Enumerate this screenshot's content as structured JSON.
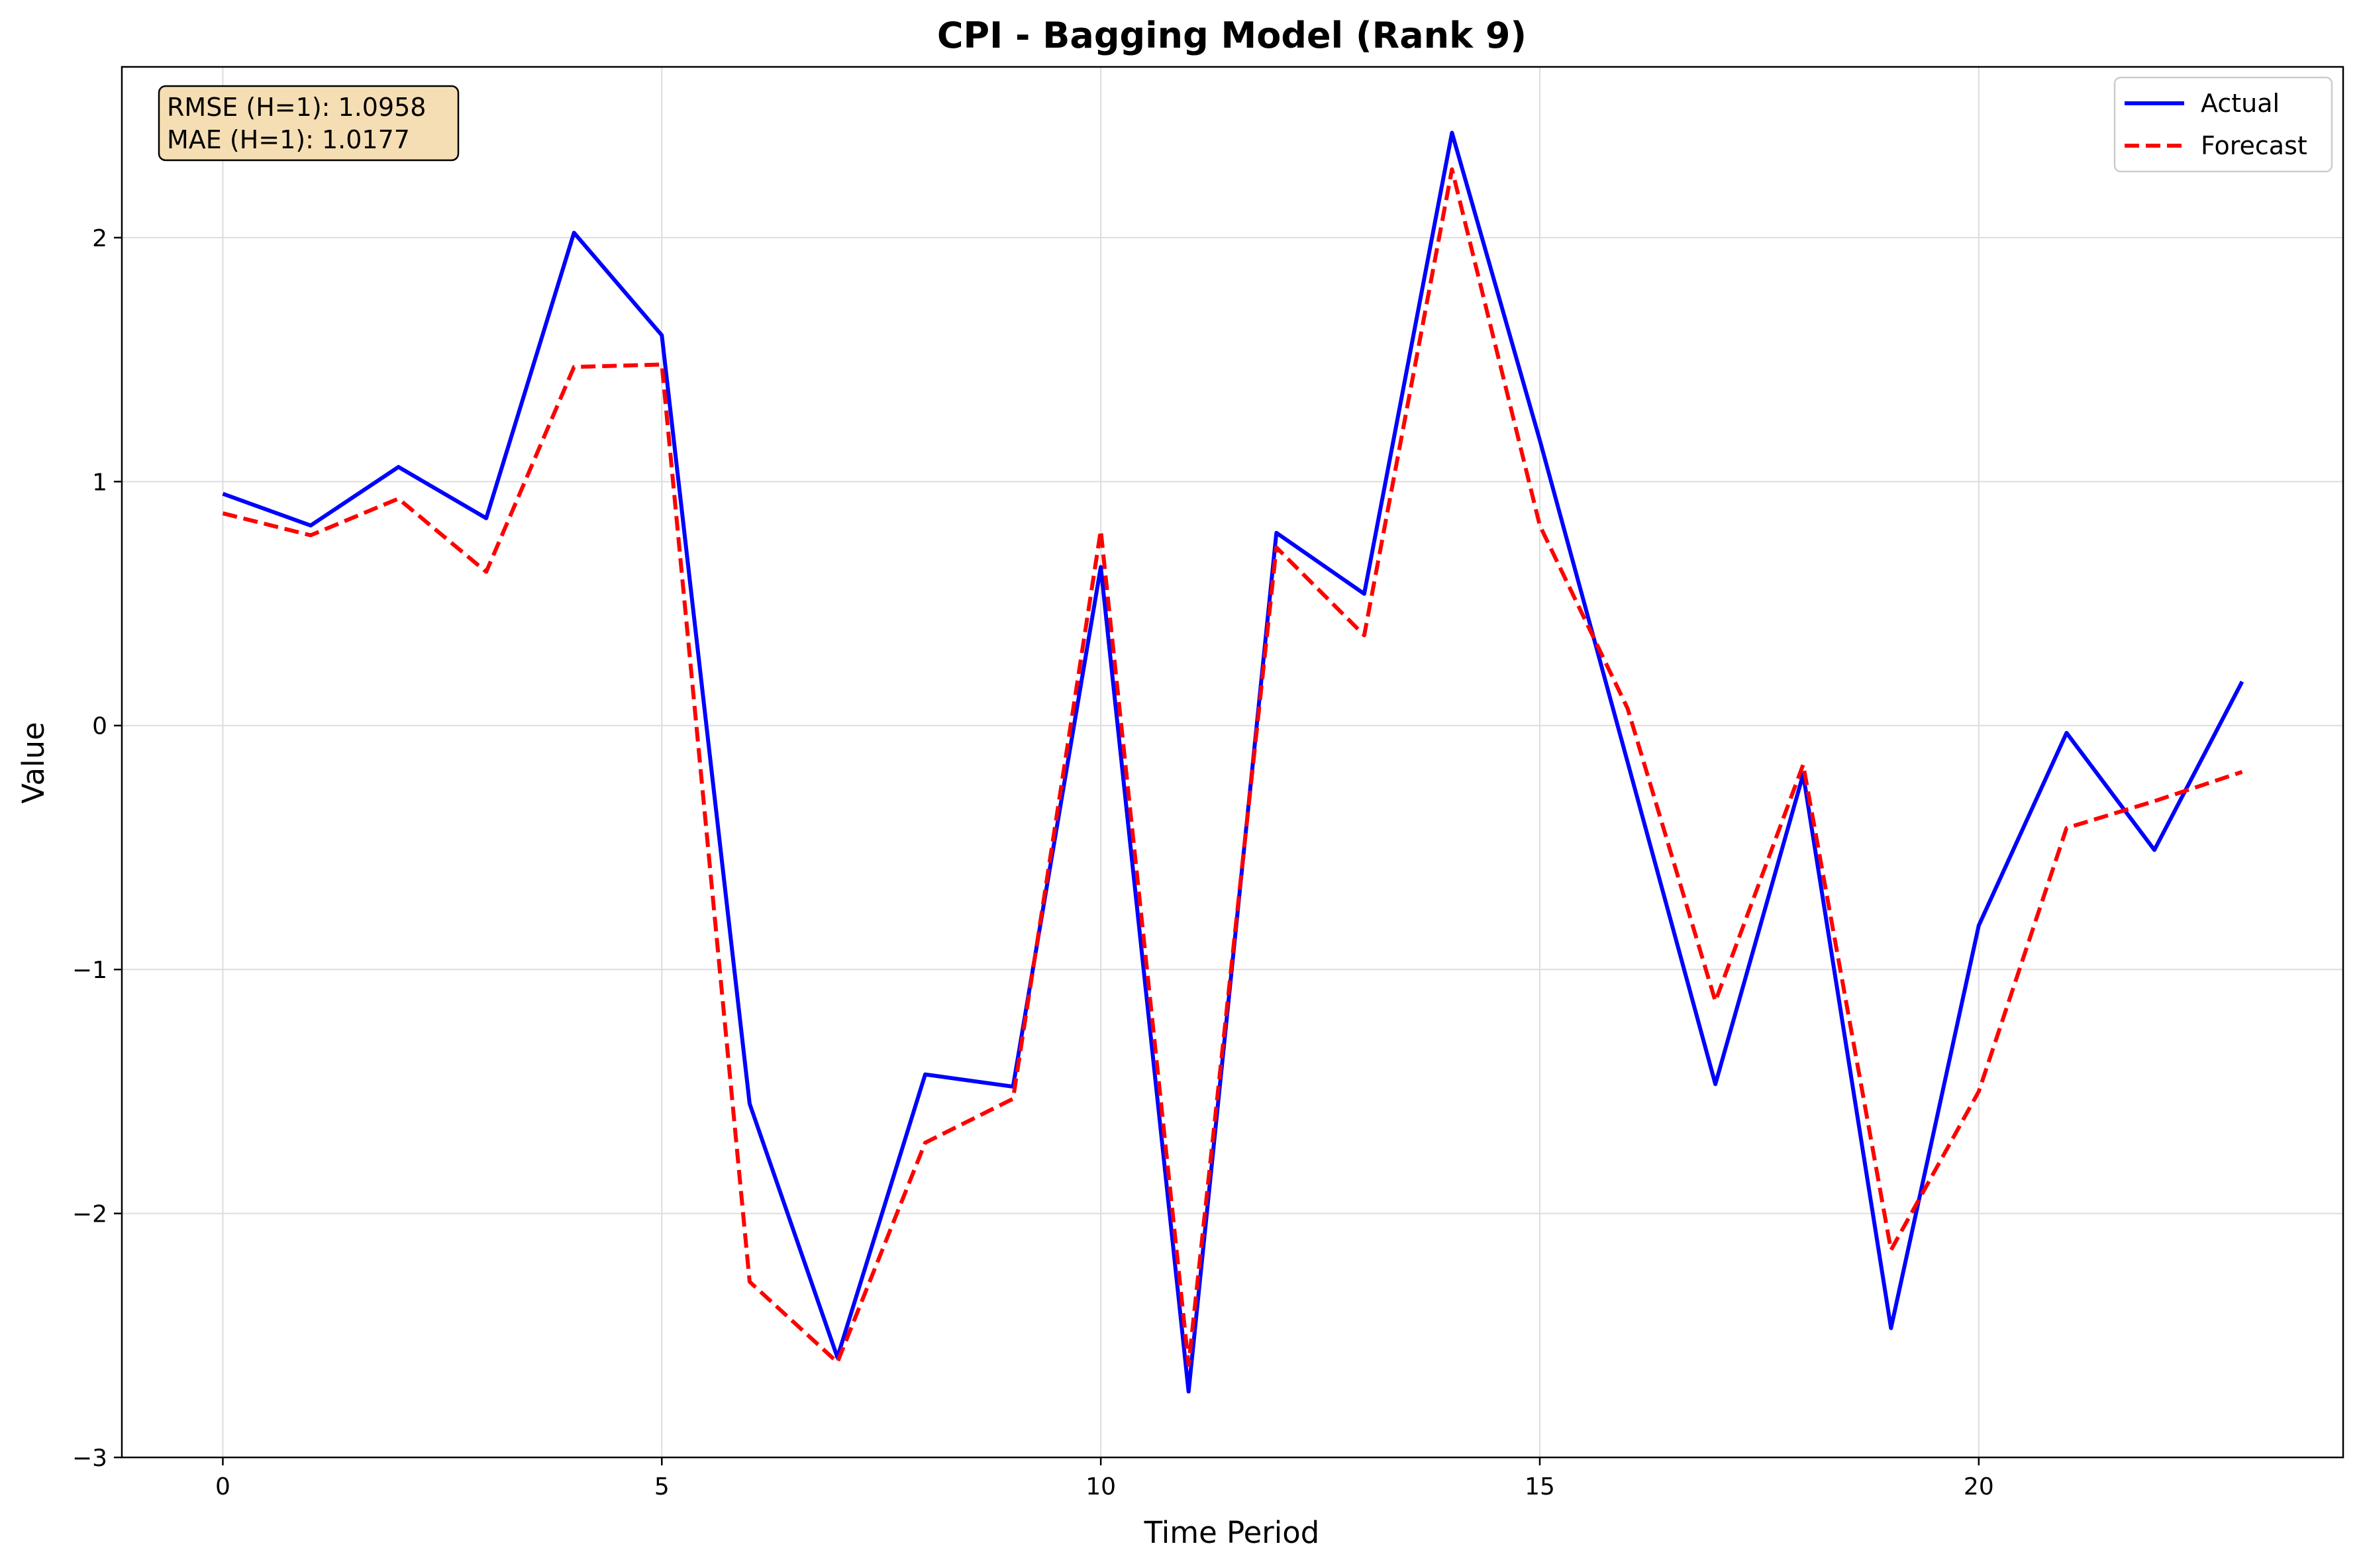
{
  "chart_data": {
    "type": "line",
    "title": "CPI - Bagging Model (Rank 9)",
    "xlabel": "Time Period",
    "ylabel": "Value",
    "xlim": [
      -1.15,
      24.15
    ],
    "ylim": [
      -3,
      2.7
    ],
    "xticks": [
      0,
      5,
      10,
      15,
      20
    ],
    "xtick_labels": [
      "0",
      "5",
      "10",
      "15",
      "20"
    ],
    "yticks": [
      -3,
      -2,
      -1,
      0,
      1,
      2
    ],
    "ytick_labels": [
      "−3",
      "−2",
      "−1",
      "0",
      "1",
      "2"
    ],
    "grid": true,
    "legend_position": "top-right",
    "x": [
      0,
      1,
      2,
      3,
      4,
      5,
      6,
      7,
      8,
      9,
      10,
      11,
      12,
      13,
      14,
      15,
      16,
      17,
      18,
      19,
      20,
      21,
      22,
      23
    ],
    "series": [
      {
        "name": "Actual",
        "color": "#0000ff",
        "style": "solid",
        "values": [
          0.95,
          0.82,
          1.06,
          0.85,
          2.02,
          1.6,
          -1.55,
          -2.59,
          -1.43,
          -1.48,
          0.65,
          -2.73,
          0.79,
          0.54,
          2.43,
          1.17,
          -0.15,
          -1.47,
          -0.2,
          -2.47,
          -0.82,
          -0.03,
          -0.51,
          0.18
        ]
      },
      {
        "name": "Forecast",
        "color": "#ff0000",
        "style": "dashed",
        "values": [
          0.87,
          0.78,
          0.93,
          0.63,
          1.47,
          1.48,
          -2.28,
          -2.61,
          -1.71,
          -1.53,
          0.8,
          -2.62,
          0.73,
          0.37,
          2.28,
          0.82,
          0.07,
          -1.13,
          -0.16,
          -2.15,
          -1.5,
          -0.42,
          -0.31,
          -0.19
        ]
      }
    ],
    "annotation": {
      "lines": [
        "RMSE (H=1): 1.0958",
        "MAE (H=1): 1.0177"
      ],
      "background": "#f5deb3"
    }
  }
}
